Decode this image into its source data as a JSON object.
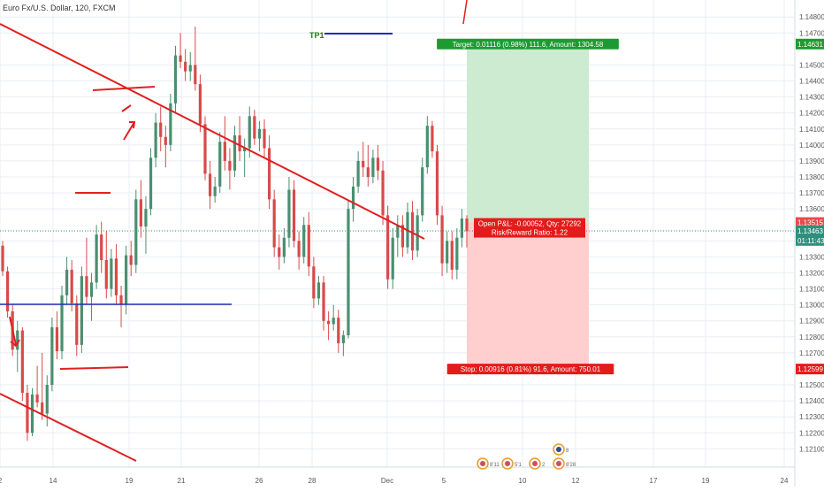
{
  "window": {
    "title": "Euro Fx/U.S. Dollar, 120, FXCM"
  },
  "colors": {
    "bull": "#4a8f70",
    "bear": "#d84a4a",
    "trend": "#e02020",
    "level": "#1f2fb0",
    "profit_zone": "#cdebd0",
    "loss_zone": "#ffcfcf",
    "target_tag": "#1d9b32",
    "stop_tag": "#e41b1b",
    "tp_text": "#1a7a1a",
    "price_tag": "#e84b4b",
    "current_line": "#2e8f7d",
    "grid": "#e9eef3"
  },
  "chart_data": {
    "type": "candlestick",
    "symbol": "Euro Fx/U.S. Dollar",
    "timeframe": "120",
    "exchange": "FXCM",
    "x_ticks": [
      "2",
      "14",
      "19",
      "21",
      "26",
      "28",
      "Dec",
      "5",
      "10",
      "12",
      "17",
      "19",
      "24"
    ],
    "y_ticks": [
      "1.14800",
      "1.14700",
      "1.14500",
      "1.14400",
      "1.14300",
      "1.14200",
      "1.14100",
      "1.14000",
      "1.13900",
      "1.13800",
      "1.13700",
      "1.13600",
      "1.13400",
      "1.13300",
      "1.13200",
      "1.13100",
      "1.13000",
      "1.12900",
      "1.12800",
      "1.12700",
      "1.12500",
      "1.12400",
      "1.12300",
      "1.12200",
      "1.12100"
    ],
    "ylim": [
      1.1203,
      1.1484
    ],
    "price_tags": [
      {
        "label": "1.14631",
        "value": 1.14631,
        "kind": "target"
      },
      {
        "label": "1.13515",
        "value": 1.13515,
        "kind": "entry"
      },
      {
        "label": "1.13463",
        "value": 1.13463,
        "kind": "current"
      },
      {
        "label": "01:11:43",
        "value": 1.13403,
        "kind": "countdown"
      },
      {
        "label": "1.12599",
        "value": 1.12599,
        "kind": "stop"
      }
    ],
    "position": {
      "entry": 1.13515,
      "target": 1.14631,
      "stop": 1.12599,
      "target_text": "Target: 0.01116 (0.98%) 111.6, Amount: 1304.58",
      "stop_text": "Stop: 0.00916 (0.81%) 91.6, Amount: 750.01",
      "pnl_text": "Open P&L: -0.00052, Qty: 27292",
      "rr_text": "Risk/Reward Ratio: 1.22"
    },
    "annotations": {
      "tp_label": "TP1"
    },
    "event_labels": [
      "8'11",
      "5'1",
      "2",
      "8",
      "8'28"
    ],
    "candles": [
      [
        1.1337,
        1.134,
        1.1318,
        1.1321
      ],
      [
        1.1321,
        1.1324,
        1.1292,
        1.1296
      ],
      [
        1.1296,
        1.13,
        1.1268,
        1.1272
      ],
      [
        1.1272,
        1.129,
        1.1258,
        1.1284
      ],
      [
        1.1284,
        1.1286,
        1.124,
        1.1245
      ],
      [
        1.1245,
        1.125,
        1.1215,
        1.122
      ],
      [
        1.122,
        1.1248,
        1.1218,
        1.1244
      ],
      [
        1.1244,
        1.1262,
        1.1236,
        1.1239
      ],
      [
        1.1239,
        1.127,
        1.1228,
        1.1232
      ],
      [
        1.1232,
        1.1256,
        1.1224,
        1.125
      ],
      [
        1.125,
        1.1292,
        1.1246,
        1.1286
      ],
      [
        1.1286,
        1.1296,
        1.1266,
        1.1271
      ],
      [
        1.1271,
        1.1312,
        1.1266,
        1.1306
      ],
      [
        1.1306,
        1.133,
        1.13,
        1.1322
      ],
      [
        1.1322,
        1.1328,
        1.1296,
        1.1301
      ],
      [
        1.1301,
        1.1306,
        1.1268,
        1.1275
      ],
      [
        1.1275,
        1.1324,
        1.127,
        1.1318
      ],
      [
        1.1318,
        1.1342,
        1.13,
        1.1305
      ],
      [
        1.1305,
        1.132,
        1.129,
        1.1314
      ],
      [
        1.1314,
        1.135,
        1.131,
        1.1344
      ],
      [
        1.1344,
        1.1352,
        1.132,
        1.1328
      ],
      [
        1.1328,
        1.1346,
        1.1304,
        1.131
      ],
      [
        1.131,
        1.1335,
        1.1305,
        1.1329
      ],
      [
        1.1329,
        1.1338,
        1.13,
        1.1306
      ],
      [
        1.1306,
        1.1312,
        1.1286,
        1.13
      ],
      [
        1.13,
        1.1337,
        1.1294,
        1.1331
      ],
      [
        1.1331,
        1.134,
        1.1318,
        1.1325
      ],
      [
        1.1325,
        1.1372,
        1.132,
        1.1366
      ],
      [
        1.1366,
        1.1378,
        1.1342,
        1.1349
      ],
      [
        1.1349,
        1.1368,
        1.1332,
        1.136
      ],
      [
        1.136,
        1.1398,
        1.1356,
        1.1392
      ],
      [
        1.1392,
        1.142,
        1.1386,
        1.1414
      ],
      [
        1.1414,
        1.1424,
        1.1396,
        1.1405
      ],
      [
        1.1405,
        1.1412,
        1.1386,
        1.14
      ],
      [
        1.14,
        1.1432,
        1.1396,
        1.1426
      ],
      [
        1.1426,
        1.1462,
        1.142,
        1.1456
      ],
      [
        1.1456,
        1.147,
        1.1448,
        1.1452
      ],
      [
        1.1452,
        1.146,
        1.144,
        1.1446
      ],
      [
        1.1446,
        1.1458,
        1.144,
        1.145
      ],
      [
        1.145,
        1.1474,
        1.1434,
        1.1438
      ],
      [
        1.1438,
        1.1444,
        1.1408,
        1.1413
      ],
      [
        1.1413,
        1.1418,
        1.1378,
        1.1382
      ],
      [
        1.1382,
        1.139,
        1.136,
        1.1368
      ],
      [
        1.1368,
        1.138,
        1.1364,
        1.1374
      ],
      [
        1.1374,
        1.1408,
        1.137,
        1.1402
      ],
      [
        1.1402,
        1.1418,
        1.1384,
        1.139
      ],
      [
        1.139,
        1.1398,
        1.1372,
        1.1384
      ],
      [
        1.1384,
        1.1412,
        1.138,
        1.1406
      ],
      [
        1.1406,
        1.1418,
        1.139,
        1.1396
      ],
      [
        1.1396,
        1.1404,
        1.138,
        1.1398
      ],
      [
        1.1398,
        1.1424,
        1.1392,
        1.1418
      ],
      [
        1.1418,
        1.1422,
        1.14,
        1.1404
      ],
      [
        1.1404,
        1.1415,
        1.1396,
        1.141
      ],
      [
        1.141,
        1.1416,
        1.1392,
        1.1398
      ],
      [
        1.1398,
        1.1406,
        1.136,
        1.1366
      ],
      [
        1.1366,
        1.1372,
        1.133,
        1.1336
      ],
      [
        1.1336,
        1.1344,
        1.1322,
        1.133
      ],
      [
        1.133,
        1.1348,
        1.1326,
        1.1342
      ],
      [
        1.1342,
        1.138,
        1.1336,
        1.1372
      ],
      [
        1.1372,
        1.1378,
        1.1336,
        1.134
      ],
      [
        1.134,
        1.1346,
        1.1322,
        1.133
      ],
      [
        1.133,
        1.1355,
        1.1326,
        1.135
      ],
      [
        1.135,
        1.1358,
        1.1318,
        1.1324
      ],
      [
        1.1324,
        1.133,
        1.1298,
        1.1304
      ],
      [
        1.1304,
        1.1318,
        1.13,
        1.1314
      ],
      [
        1.1314,
        1.1318,
        1.1284,
        1.129
      ],
      [
        1.129,
        1.1296,
        1.1278,
        1.1288
      ],
      [
        1.1288,
        1.13,
        1.1284,
        1.1292
      ],
      [
        1.1292,
        1.1297,
        1.127,
        1.1276
      ],
      [
        1.1276,
        1.1284,
        1.1268,
        1.1281
      ],
      [
        1.1281,
        1.1365,
        1.1279,
        1.136
      ],
      [
        1.136,
        1.138,
        1.1352,
        1.1374
      ],
      [
        1.1374,
        1.1396,
        1.137,
        1.139
      ],
      [
        1.139,
        1.1402,
        1.138,
        1.1386
      ],
      [
        1.1386,
        1.14,
        1.1374,
        1.138
      ],
      [
        1.138,
        1.1397,
        1.1376,
        1.1392
      ],
      [
        1.1392,
        1.14,
        1.1378,
        1.1384
      ],
      [
        1.1384,
        1.139,
        1.135,
        1.1356
      ],
      [
        1.1356,
        1.1362,
        1.131,
        1.1316
      ],
      [
        1.1316,
        1.1348,
        1.131,
        1.1342
      ],
      [
        1.1342,
        1.1356,
        1.133,
        1.135
      ],
      [
        1.135,
        1.1356,
        1.133,
        1.1336
      ],
      [
        1.1336,
        1.1364,
        1.1332,
        1.1358
      ],
      [
        1.1358,
        1.1365,
        1.1328,
        1.1334
      ],
      [
        1.1334,
        1.136,
        1.133,
        1.1356
      ],
      [
        1.1356,
        1.1392,
        1.1352,
        1.1386
      ],
      [
        1.1386,
        1.1418,
        1.1382,
        1.1412
      ],
      [
        1.1412,
        1.1415,
        1.1392,
        1.1396
      ],
      [
        1.1396,
        1.14,
        1.135,
        1.1356
      ],
      [
        1.1356,
        1.1362,
        1.1318,
        1.1326
      ],
      [
        1.1326,
        1.1346,
        1.132,
        1.134
      ],
      [
        1.134,
        1.1346,
        1.1316,
        1.1322
      ],
      [
        1.1322,
        1.1348,
        1.1316,
        1.1342
      ],
      [
        1.1342,
        1.136,
        1.1336,
        1.1354
      ],
      [
        1.1354,
        1.1356,
        1.1336,
        1.1346
      ]
    ]
  }
}
